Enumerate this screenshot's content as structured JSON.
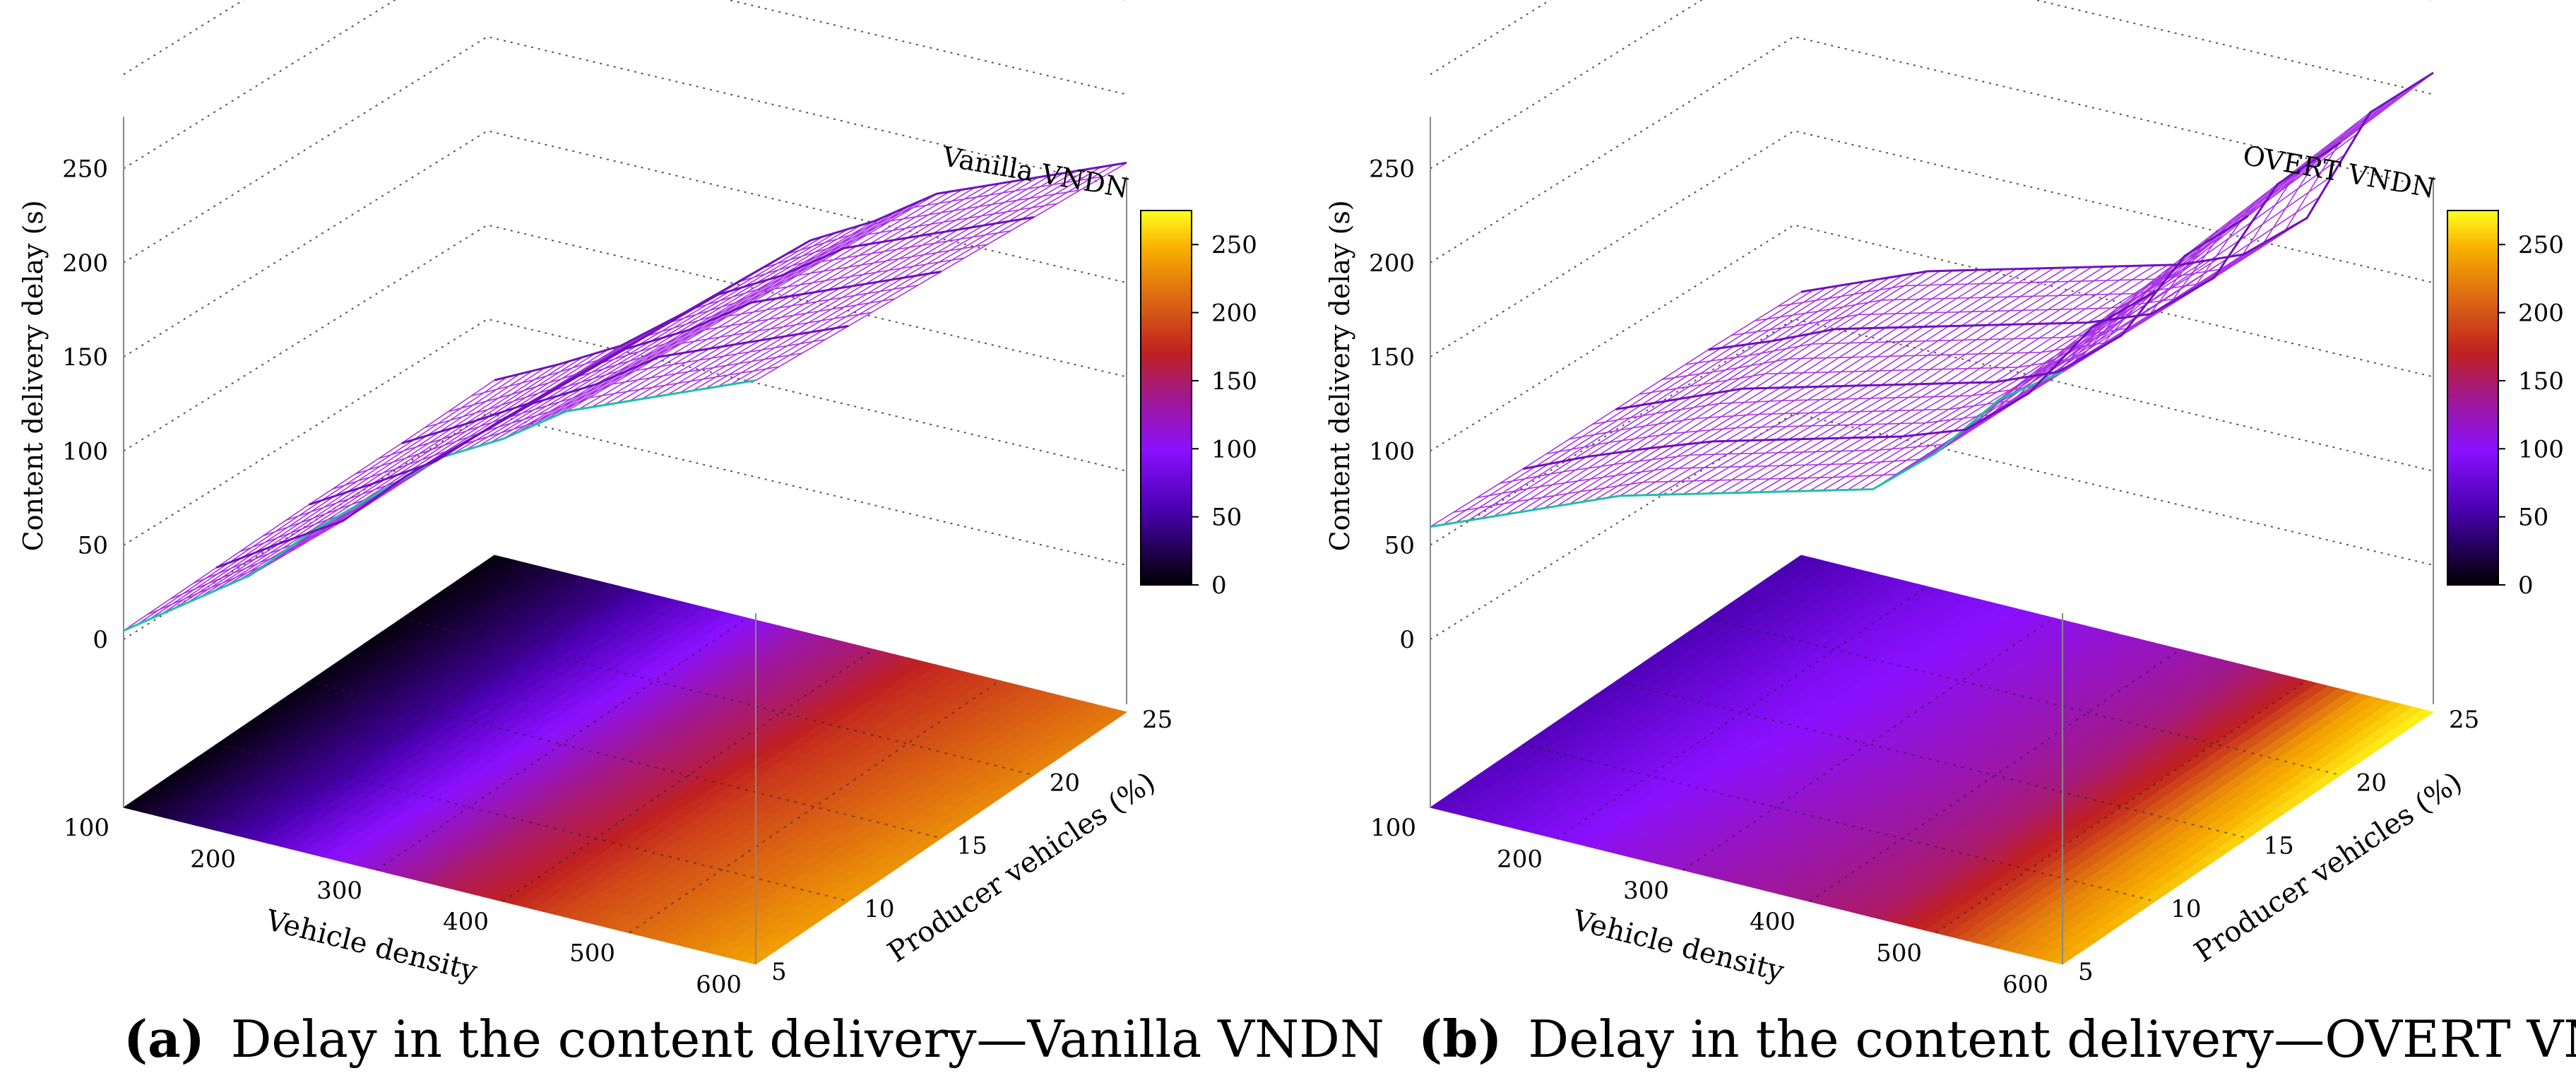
{
  "panels": [
    {
      "caption_label": "(a)",
      "caption_text": "Delay in the content delivery—Vanilla VNDN",
      "chart_data": {
        "type": "surface3d",
        "title": "Vanilla VNDN",
        "xlabel": "Vehicle density",
        "ylabel": "Producer vehicles (%)",
        "zlabel": "Content delivery delay (s)",
        "xticks": [
          "100",
          "200",
          "300",
          "400",
          "500",
          "600"
        ],
        "yticks": [
          "5",
          "10",
          "15",
          "20",
          "25"
        ],
        "zticks": [
          "0",
          "50",
          "100",
          "150",
          "200",
          "250"
        ],
        "colorbar_ticks": [
          "0",
          "50",
          "100",
          "150",
          "200",
          "250"
        ],
        "xlim": [
          100,
          600
        ],
        "ylim": [
          5,
          25
        ],
        "zlim": [
          0,
          275
        ],
        "x": [
          100,
          150,
          200,
          250,
          300,
          350,
          400,
          450,
          500,
          550,
          600
        ],
        "series": [
          {
            "name": "5% producers",
            "values": [
              5,
              30,
              55,
              90,
              120,
              150,
              170,
              195,
              210,
              225,
              240
            ]
          },
          {
            "name": "10% producers",
            "values": [
              5,
              28,
              50,
              85,
              115,
              145,
              165,
              190,
              205,
              220,
              235
            ]
          },
          {
            "name": "15% producers",
            "values": [
              5,
              26,
              48,
              80,
              110,
              140,
              160,
              185,
              200,
              215,
              230
            ]
          },
          {
            "name": "20% producers",
            "values": [
              4,
              24,
              45,
              75,
              105,
              135,
              155,
              180,
              195,
              210,
              225
            ]
          },
          {
            "name": "25% producers",
            "values": [
              4,
              22,
              42,
              70,
              100,
              130,
              150,
              175,
              190,
              205,
              220
            ]
          }
        ]
      }
    },
    {
      "caption_label": "(b)",
      "caption_text": "Delay in the content delivery—OVERT VNDN",
      "chart_data": {
        "type": "surface3d",
        "title": "OVERT VNDN",
        "xlabel": "Vehicle density",
        "ylabel": "Producer vehicles (%)",
        "zlabel": "Content delivery delay (s)",
        "xticks": [
          "100",
          "200",
          "300",
          "400",
          "500",
          "600"
        ],
        "yticks": [
          "5",
          "10",
          "15",
          "20",
          "25"
        ],
        "zticks": [
          "0",
          "50",
          "100",
          "150",
          "200",
          "250"
        ],
        "colorbar_ticks": [
          "0",
          "50",
          "100",
          "150",
          "200",
          "250"
        ],
        "xlim": [
          100,
          600
        ],
        "ylim": [
          5,
          25
        ],
        "zlim": [
          0,
          275
        ],
        "x": [
          100,
          150,
          200,
          250,
          300,
          350,
          400,
          450,
          500,
          550,
          600
        ],
        "series": [
          {
            "name": "5% producers",
            "values": [
              65,
              80,
              95,
              110,
              120,
              130,
              140,
              150,
              180,
              220,
              245
            ]
          },
          {
            "name": "10% producers",
            "values": [
              62,
              78,
              92,
              105,
              115,
              125,
              135,
              148,
              178,
              225,
              255
            ]
          },
          {
            "name": "15% producers",
            "values": [
              60,
              75,
              90,
              100,
              110,
              120,
              130,
              145,
              175,
              230,
              262
            ]
          },
          {
            "name": "20% producers",
            "values": [
              58,
              72,
              88,
              98,
              108,
              118,
              128,
              142,
              172,
              235,
              268
            ]
          },
          {
            "name": "25% producers",
            "values": [
              55,
              70,
              85,
              95,
              105,
              115,
              125,
              140,
              170,
              240,
              272
            ]
          }
        ]
      }
    }
  ]
}
